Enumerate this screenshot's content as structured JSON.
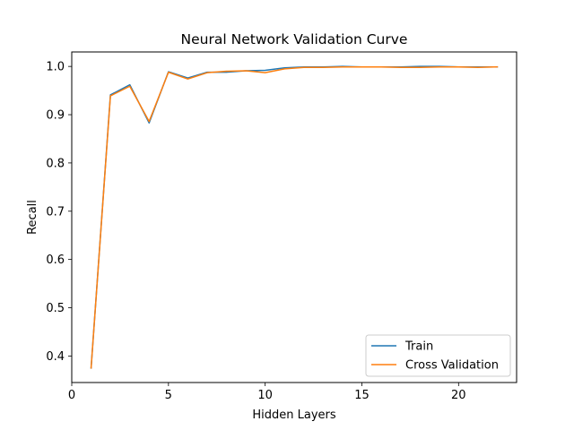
{
  "chart_data": {
    "type": "line",
    "title": "Neural Network Validation Curve",
    "xlabel": "Hidden Layers",
    "ylabel": "Recall",
    "xlim": [
      0,
      23
    ],
    "ylim": [
      0.345,
      1.03
    ],
    "xticks": [
      0,
      5,
      10,
      15,
      20
    ],
    "yticks": [
      0.4,
      0.5,
      0.6,
      0.7,
      0.8,
      0.9,
      1.0
    ],
    "grid": false,
    "legend_position": "lower-right",
    "x": [
      1,
      2,
      3,
      4,
      5,
      6,
      7,
      8,
      9,
      10,
      11,
      12,
      13,
      14,
      15,
      16,
      17,
      18,
      19,
      20,
      21,
      22
    ],
    "series": [
      {
        "name": "Train",
        "color": "#1f77b4",
        "values": [
          0.375,
          0.941,
          0.962,
          0.883,
          0.989,
          0.976,
          0.988,
          0.988,
          0.991,
          0.992,
          0.997,
          0.999,
          0.999,
          1.0,
          0.999,
          0.999,
          0.999,
          1.0,
          1.0,
          0.999,
          0.999,
          0.999
        ]
      },
      {
        "name": "Cross Validation",
        "color": "#ff7f0e",
        "values": [
          0.375,
          0.939,
          0.959,
          0.886,
          0.988,
          0.974,
          0.987,
          0.99,
          0.991,
          0.987,
          0.995,
          0.998,
          0.998,
          0.999,
          0.999,
          0.999,
          0.998,
          0.998,
          0.999,
          0.999,
          0.998,
          0.999
        ]
      }
    ]
  }
}
